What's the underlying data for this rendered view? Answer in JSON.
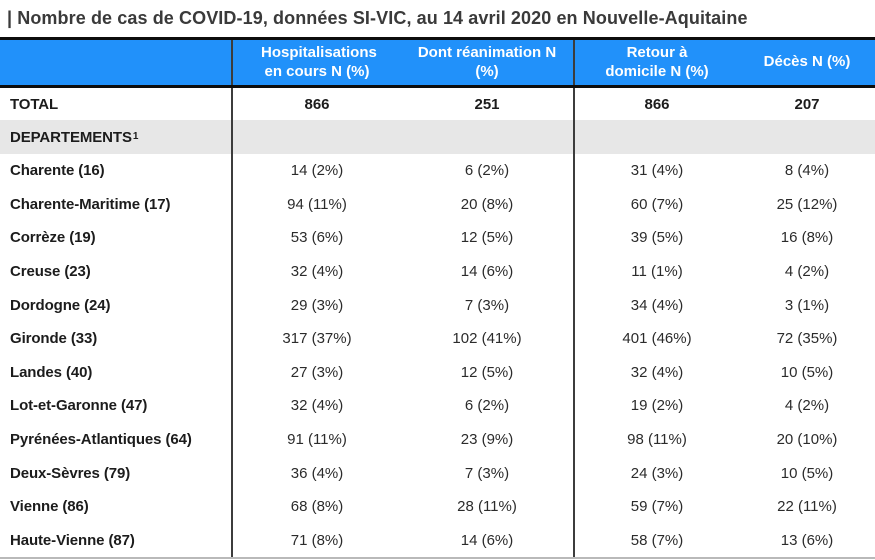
{
  "title": "| Nombre de cas de COVID-19, données SI-VIC, au 14 avril 2020 en Nouvelle-Aquitaine",
  "colors": {
    "header_bg": "#2191fa",
    "header_text": "#ffffff",
    "section_bg": "#e7e7e7",
    "heavy_border": "#0d0d0d",
    "divider": "#3c3c3c",
    "bottom_border": "#b9b9b9"
  },
  "table": {
    "columns": [
      "Hospitalisations en cours N (%)",
      "Dont réanimation N (%)",
      "Retour à domicile N (%)",
      "Décès N (%)"
    ],
    "total": {
      "label": "TOTAL",
      "values": [
        "866",
        "251",
        "866",
        "207"
      ]
    },
    "section": {
      "label": "DEPARTEMENTS",
      "sup": "1"
    },
    "rows": [
      {
        "label": "Charente (16)",
        "values": [
          "14 (2%)",
          "6 (2%)",
          "31 (4%)",
          "8 (4%)"
        ]
      },
      {
        "label": "Charente-Maritime (17)",
        "values": [
          "94 (11%)",
          "20 (8%)",
          "60 (7%)",
          "25 (12%)"
        ]
      },
      {
        "label": "Corrèze (19)",
        "values": [
          "53 (6%)",
          "12 (5%)",
          "39 (5%)",
          "16 (8%)"
        ]
      },
      {
        "label": "Creuse (23)",
        "values": [
          "32 (4%)",
          "14 (6%)",
          "11 (1%)",
          "4 (2%)"
        ]
      },
      {
        "label": "Dordogne (24)",
        "values": [
          "29 (3%)",
          "7 (3%)",
          "34 (4%)",
          "3 (1%)"
        ]
      },
      {
        "label": "Gironde (33)",
        "values": [
          "317 (37%)",
          "102 (41%)",
          "401 (46%)",
          "72 (35%)"
        ]
      },
      {
        "label": "Landes (40)",
        "values": [
          "27 (3%)",
          "12 (5%)",
          "32 (4%)",
          "10 (5%)"
        ]
      },
      {
        "label": "Lot-et-Garonne (47)",
        "values": [
          "32 (4%)",
          "6 (2%)",
          "19 (2%)",
          "4 (2%)"
        ]
      },
      {
        "label": "Pyrénées-Atlantiques (64)",
        "values": [
          "91 (11%)",
          "23 (9%)",
          "98 (11%)",
          "20 (10%)"
        ]
      },
      {
        "label": "Deux-Sèvres (79)",
        "values": [
          "36 (4%)",
          "7 (3%)",
          "24 (3%)",
          "10 (5%)"
        ]
      },
      {
        "label": "Vienne (86)",
        "values": [
          "68 (8%)",
          "28 (11%)",
          "59 (7%)",
          "22 (11%)"
        ]
      },
      {
        "label": "Haute-Vienne (87)",
        "values": [
          "71 (8%)",
          "14 (6%)",
          "58 (7%)",
          "13 (6%)"
        ]
      }
    ]
  }
}
